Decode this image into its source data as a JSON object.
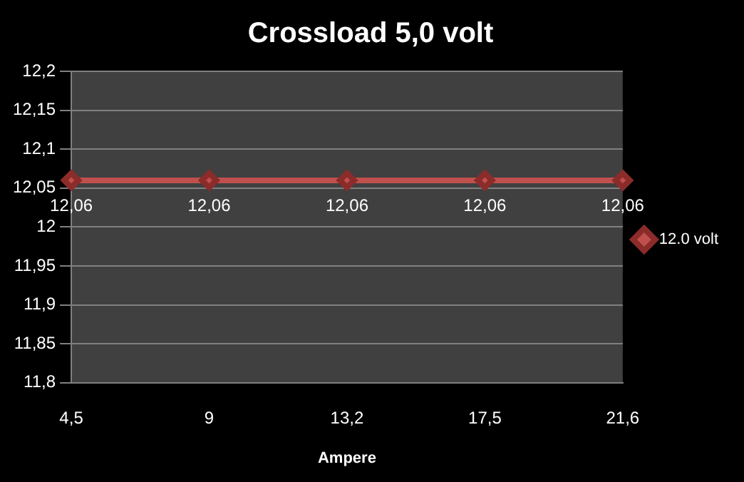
{
  "chart_data": {
    "type": "line",
    "title": "Crossload 5,0 volt",
    "xlabel": "Ampere",
    "categories": [
      "4,5",
      "9",
      "13,2",
      "17,5",
      "21,6"
    ],
    "series": [
      {
        "name": "12.0 volt",
        "color": "#c0504d",
        "values": [
          12.06,
          12.06,
          12.06,
          12.06,
          12.06
        ],
        "value_labels": [
          "12,06",
          "12,06",
          "12,06",
          "12,06",
          "12,06"
        ]
      }
    ],
    "ylim": [
      11.8,
      12.2
    ],
    "yticks": [
      {
        "value": 11.8,
        "label": "11,8"
      },
      {
        "value": 11.85,
        "label": "11,85"
      },
      {
        "value": 11.9,
        "label": "11,9"
      },
      {
        "value": 11.95,
        "label": "11,95"
      },
      {
        "value": 12,
        "label": "12"
      },
      {
        "value": 12.05,
        "label": "12,05"
      },
      {
        "value": 12.1,
        "label": "12,1"
      },
      {
        "value": 12.15,
        "label": "12,15"
      },
      {
        "value": 12.2,
        "label": "12,2"
      }
    ],
    "grid": "y",
    "legend": "right",
    "marker": "diamond",
    "line_style": "solid"
  }
}
